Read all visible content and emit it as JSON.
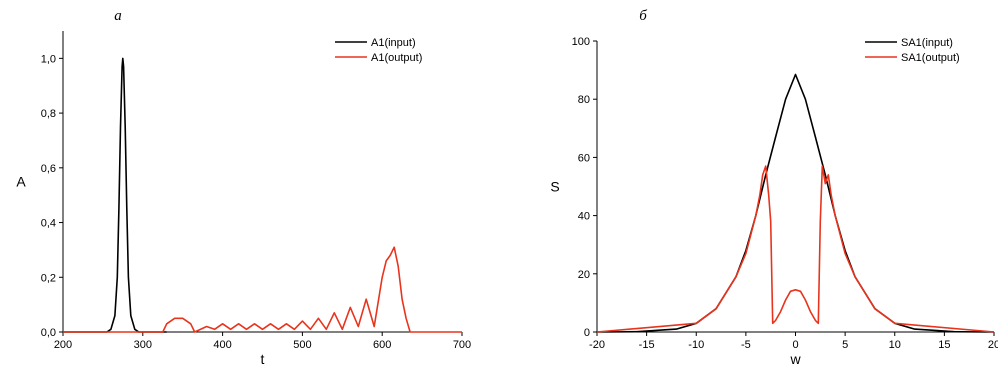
{
  "chart_data": [
    {
      "type": "line",
      "panel_label": "a",
      "xlabel": "t",
      "ylabel": "A",
      "xlim": [
        200,
        700
      ],
      "ylim": [
        0,
        1.1
      ],
      "x_ticks": [
        "200",
        "300",
        "400",
        "500",
        "600",
        "700"
      ],
      "y_ticks": [
        "0,0",
        "0,2",
        "0,4",
        "0,6",
        "0,8",
        "1,0"
      ],
      "legend_position": "top-right",
      "series": [
        {
          "name": "A1(input)",
          "color": "#000000",
          "x": [
            200,
            255,
            260,
            265,
            268,
            270,
            272,
            274,
            275,
            276,
            278,
            280,
            282,
            285,
            290,
            295,
            330
          ],
          "y": [
            0,
            0,
            0.01,
            0.06,
            0.2,
            0.45,
            0.75,
            0.97,
            1.0,
            0.97,
            0.75,
            0.45,
            0.2,
            0.06,
            0.01,
            0,
            0
          ]
        },
        {
          "name": "A1(output)",
          "color": "#e8341c",
          "x": [
            200,
            325,
            330,
            340,
            350,
            360,
            365,
            380,
            390,
            400,
            410,
            420,
            430,
            440,
            450,
            460,
            470,
            480,
            490,
            500,
            510,
            520,
            530,
            540,
            550,
            560,
            570,
            580,
            590,
            600,
            605,
            610,
            615,
            620,
            625,
            630,
            635,
            700
          ],
          "y": [
            0,
            0,
            0.03,
            0.05,
            0.05,
            0.03,
            0,
            0.02,
            0.01,
            0.03,
            0.01,
            0.03,
            0.01,
            0.03,
            0.01,
            0.03,
            0.01,
            0.03,
            0.01,
            0.04,
            0.01,
            0.05,
            0.01,
            0.07,
            0.01,
            0.09,
            0.02,
            0.12,
            0.02,
            0.2,
            0.26,
            0.28,
            0.31,
            0.24,
            0.12,
            0.05,
            0,
            0
          ]
        }
      ]
    },
    {
      "type": "line",
      "panel_label": "б",
      "xlabel": "w",
      "ylabel": "S",
      "xlim": [
        -20,
        20
      ],
      "ylim": [
        0,
        100
      ],
      "x_ticks": [
        "-20",
        "-15",
        "-10",
        "-5",
        "0",
        "5",
        "10",
        "15",
        "20"
      ],
      "y_ticks": [
        "0",
        "20",
        "40",
        "60",
        "80",
        "100"
      ],
      "legend_position": "top-right",
      "series": [
        {
          "name": "SA1(input)",
          "color": "#000000",
          "x": [
            -20,
            -16,
            -12,
            -10,
            -8,
            -6,
            -5,
            -4,
            -3,
            -2,
            -1,
            0,
            1,
            2,
            3,
            4,
            5,
            6,
            8,
            10,
            12,
            16,
            20
          ],
          "y": [
            0,
            0.1,
            1,
            3,
            8,
            19,
            28,
            40,
            54,
            67,
            80,
            88.5,
            80,
            67,
            54,
            40,
            28,
            19,
            8,
            3,
            1,
            0.1,
            0
          ]
        },
        {
          "name": "SA1(output)",
          "color": "#e8341c",
          "x": [
            -20,
            -10,
            -8,
            -6,
            -5,
            -4,
            -3.6,
            -3.3,
            -3,
            -2.7,
            -2.5,
            -2.3,
            -2,
            -1.5,
            -1,
            -0.5,
            0,
            0.5,
            1,
            1.5,
            2,
            2.3,
            2.5,
            2.7,
            3,
            3.3,
            3.6,
            4,
            5,
            6,
            8,
            10,
            20
          ],
          "y": [
            0,
            3,
            8,
            19,
            27,
            40,
            47,
            54,
            57,
            47,
            38,
            3,
            4,
            7,
            11,
            14,
            14.5,
            14,
            11,
            7,
            4,
            3,
            38,
            57,
            51,
            54,
            47,
            40,
            27,
            19,
            8,
            3,
            0
          ]
        }
      ]
    }
  ]
}
